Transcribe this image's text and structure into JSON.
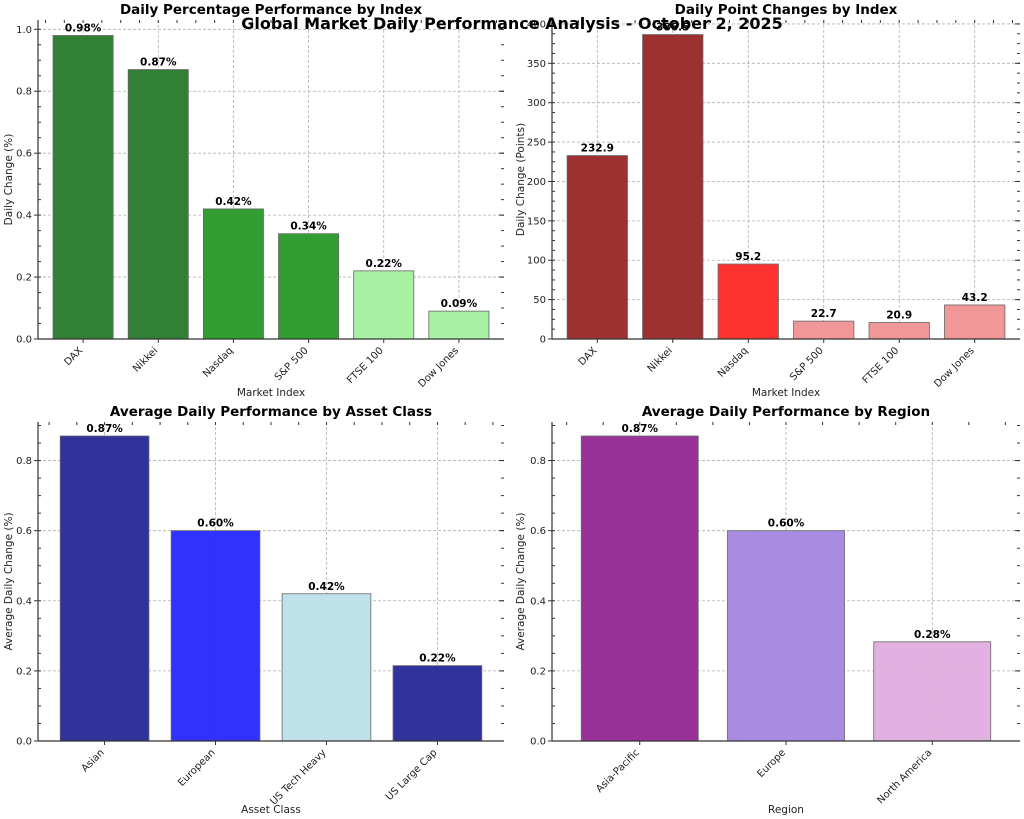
{
  "figure": {
    "suptitle": "Global Market Daily Performance Analysis - October 2, 2025"
  },
  "chart_data": [
    {
      "id": "pct",
      "type": "bar",
      "title": "Daily Percentage Performance by Index",
      "xlabel": "Market Index",
      "ylabel": "Daily Change (%)",
      "categories": [
        "DAX",
        "Nikkei",
        "Nasdaq",
        "S&P 500",
        "FTSE 100",
        "Dow Jones"
      ],
      "values": [
        0.98,
        0.87,
        0.42,
        0.34,
        0.22,
        0.09
      ],
      "labels": [
        "0.98%",
        "0.87%",
        "0.42%",
        "0.34%",
        "0.22%",
        "0.09%"
      ],
      "colors": [
        "#2e7d32",
        "#2e7d32",
        "#2e9b2e",
        "#2e9b2e",
        "#a6f0a0",
        "#a6f0a0"
      ],
      "ylim": [
        0,
        1.03
      ],
      "yticks": [
        0.0,
        0.2,
        0.4,
        0.6,
        0.8,
        1.0
      ],
      "ytick_labels": [
        "0.0",
        "0.2",
        "0.4",
        "0.6",
        "0.8",
        "1.0"
      ],
      "grid": true
    },
    {
      "id": "pts",
      "type": "bar",
      "title": "Daily Point Changes by Index",
      "xlabel": "Market Index",
      "ylabel": "Daily Change (Points)",
      "categories": [
        "DAX",
        "Nikkei",
        "Nasdaq",
        "S&P 500",
        "FTSE 100",
        "Dow Jones"
      ],
      "values": [
        232.9,
        386.5,
        95.2,
        22.7,
        20.9,
        43.2
      ],
      "labels": [
        "232.9",
        "386.5",
        "95.2",
        "22.7",
        "20.9",
        "43.2"
      ],
      "colors": [
        "#9b2c2c",
        "#9b2c2c",
        "#ff2e2e",
        "#f29595",
        "#f29595",
        "#f29595"
      ],
      "ylim": [
        0,
        405
      ],
      "yticks": [
        0,
        50,
        100,
        150,
        200,
        250,
        300,
        350,
        400
      ],
      "ytick_labels": [
        "0",
        "50",
        "100",
        "150",
        "200",
        "250",
        "300",
        "350",
        "400"
      ],
      "grid": true
    },
    {
      "id": "asset",
      "type": "bar",
      "title": "Average Daily Performance by Asset Class",
      "xlabel": "Asset Class",
      "ylabel": "Average Daily Change (%)",
      "categories": [
        "Asian",
        "European",
        "US Tech Heavy",
        "US Large Cap"
      ],
      "values": [
        0.87,
        0.6,
        0.42,
        0.215
      ],
      "labels": [
        "0.87%",
        "0.60%",
        "0.42%",
        "0.22%"
      ],
      "colors": [
        "#2e2e9b",
        "#2e2eff",
        "#bde0ea",
        "#2e2e9b"
      ],
      "ylim": [
        0,
        0.91
      ],
      "yticks": [
        0.0,
        0.2,
        0.4,
        0.6,
        0.8
      ],
      "ytick_labels": [
        "0.0",
        "0.2",
        "0.4",
        "0.6",
        "0.8"
      ],
      "grid": true
    },
    {
      "id": "region",
      "type": "bar",
      "title": "Average Daily Performance by Region",
      "xlabel": "Region",
      "ylabel": "Average Daily Change (%)",
      "categories": [
        "Asia-Pacific",
        "Europe",
        "North America"
      ],
      "values": [
        0.87,
        0.6,
        0.283
      ],
      "labels": [
        "0.87%",
        "0.60%",
        "0.28%"
      ],
      "colors": [
        "#962e96",
        "#a58ae0",
        "#e0b0e0"
      ],
      "ylim": [
        0,
        0.91
      ],
      "yticks": [
        0.0,
        0.2,
        0.4,
        0.6,
        0.8
      ],
      "ytick_labels": [
        "0.0",
        "0.2",
        "0.4",
        "0.6",
        "0.8"
      ],
      "grid": true
    }
  ]
}
